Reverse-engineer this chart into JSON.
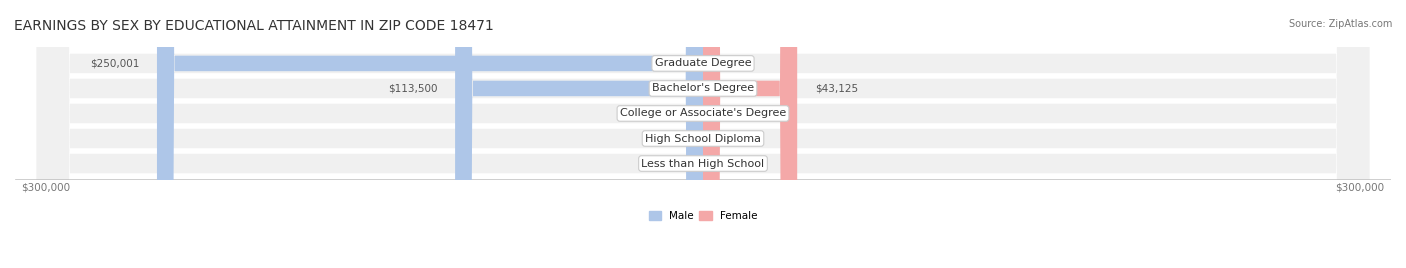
{
  "title": "EARNINGS BY SEX BY EDUCATIONAL ATTAINMENT IN ZIP CODE 18471",
  "source": "Source: ZipAtlas.com",
  "categories": [
    "Less than High School",
    "High School Diploma",
    "College or Associate's Degree",
    "Bachelor's Degree",
    "Graduate Degree"
  ],
  "male_values": [
    0,
    0,
    0,
    113500,
    250001
  ],
  "female_values": [
    0,
    0,
    0,
    43125,
    0
  ],
  "male_color": "#7bafd4",
  "female_color": "#f08080",
  "male_color_light": "#aec6e8",
  "female_color_light": "#f4a8a8",
  "bar_bg_color": "#e8e8e8",
  "row_bg_color": "#f0f0f0",
  "x_max": 300000,
  "x_min": -300000,
  "xlabel_left": "$300,000",
  "xlabel_right": "$300,000",
  "legend_male": "Male",
  "legend_female": "Female",
  "title_fontsize": 10,
  "source_fontsize": 7,
  "label_fontsize": 7.5,
  "category_fontsize": 8
}
